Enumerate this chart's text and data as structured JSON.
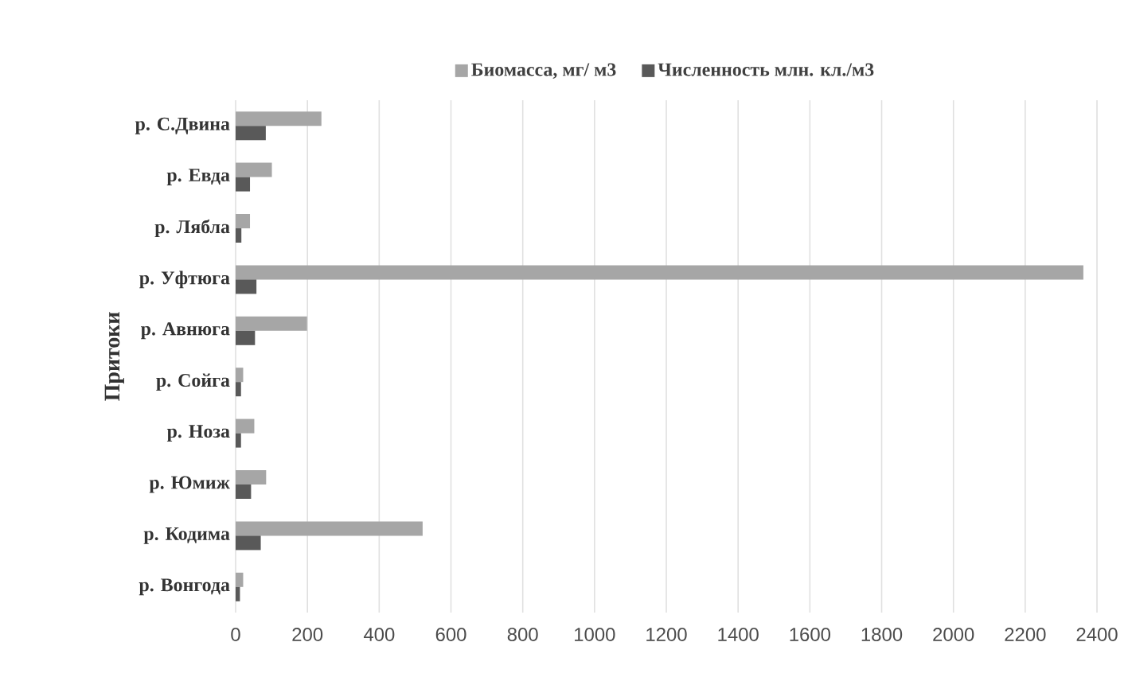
{
  "chart_data": {
    "type": "bar",
    "orientation": "horizontal",
    "ylabel": "Притоки",
    "categories": [
      "р. С.Двина",
      "р. Евда",
      "р. Лябла",
      "р. Уфтюга",
      "р. Авнюга",
      "р. Сойга",
      "р. Ноза",
      "р. Юмиж",
      "р. Кодима",
      "р. Вонгода"
    ],
    "series": [
      {
        "name": "Биомасса, мг/ м3",
        "color": "#a6a6a6",
        "values": [
          239,
          101,
          40,
          2362,
          199,
          21,
          52,
          85,
          521,
          21
        ]
      },
      {
        "name": "Численность млн. кл./м3",
        "color": "#595959",
        "values": [
          84,
          40,
          16,
          58,
          54,
          15,
          15,
          43,
          70,
          12
        ]
      }
    ],
    "xlim": [
      0,
      2400
    ],
    "xticks": [
      0,
      200,
      400,
      600,
      800,
      1000,
      1200,
      1400,
      1600,
      1800,
      2000,
      2200,
      2400
    ],
    "grid": "x",
    "legend": "top"
  }
}
